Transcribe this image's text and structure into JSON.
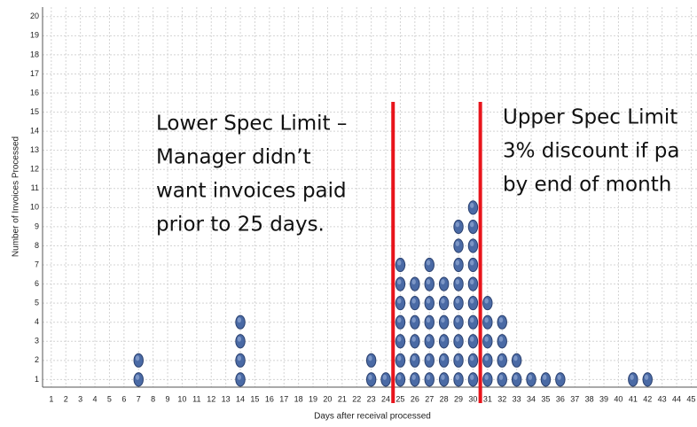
{
  "chart_data": {
    "type": "dot",
    "x_label": "Days after receival processed",
    "y_label": "Number of Invoices Processed",
    "x": [
      7,
      14,
      23,
      24,
      25,
      26,
      27,
      28,
      29,
      30,
      31,
      32,
      33,
      34,
      35,
      36,
      41,
      42
    ],
    "values": [
      2,
      4,
      2,
      1,
      7,
      6,
      7,
      6,
      9,
      10,
      5,
      4,
      2,
      1,
      1,
      1,
      1,
      1
    ],
    "color": "#4a6aa5",
    "xlim": [
      0.4,
      45.4
    ],
    "xticks": [
      1,
      2,
      3,
      4,
      5,
      6,
      7,
      8,
      9,
      10,
      11,
      12,
      13,
      14,
      15,
      16,
      17,
      18,
      19,
      20,
      21,
      22,
      23,
      24,
      25,
      26,
      27,
      28,
      29,
      30,
      31,
      32,
      33,
      34,
      35,
      36,
      37,
      38,
      39,
      40,
      41,
      42,
      43,
      44,
      45
    ],
    "ylim": [
      0.6,
      20.5
    ],
    "yticks": [
      1,
      2,
      3,
      4,
      5,
      6,
      7,
      8,
      9,
      10,
      11,
      12,
      13,
      14,
      15,
      16,
      17,
      18,
      19,
      20
    ],
    "grid": true,
    "spec_limits": [
      {
        "value": 24.5,
        "color": "#e8141b",
        "annotation": [
          "Lower Spec Limit –",
          "Manager didn’t",
          "want invoices paid",
          "prior to 25 days."
        ]
      },
      {
        "value": 30.5,
        "color": "#e8141b",
        "annotation": [
          "Upper Spec Limit",
          "3% discount if pa",
          "by end of month"
        ]
      }
    ]
  }
}
